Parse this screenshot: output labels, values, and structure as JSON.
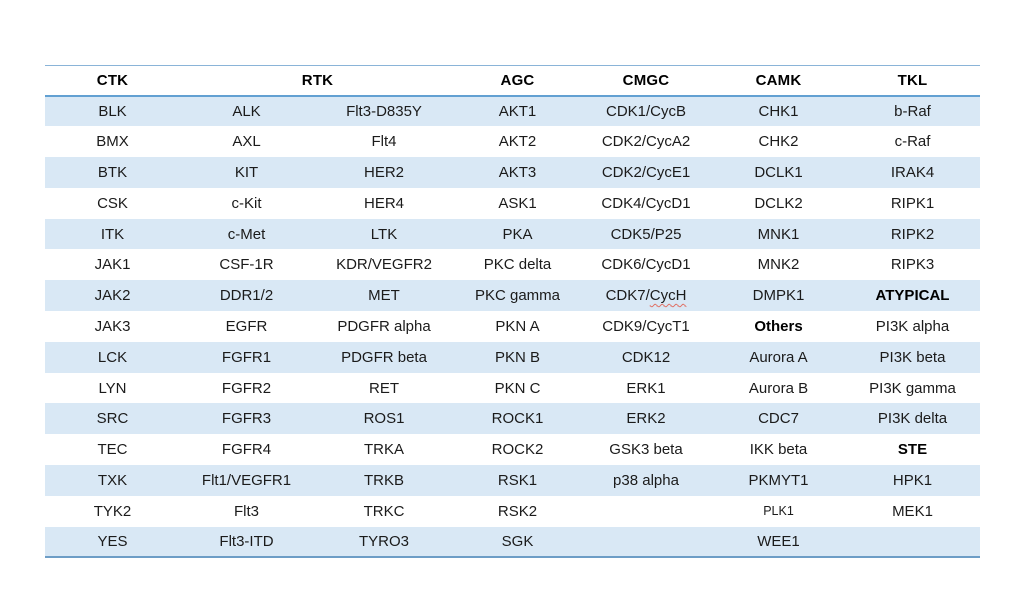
{
  "colors": {
    "band": "#d9e8f5",
    "line-top": "#8ab4d8",
    "line-header": "#62a0d2",
    "line-bottom": "#6d9dc6",
    "text": "#1b1b1b",
    "page-bg": "#ffffff"
  },
  "table": {
    "headers": [
      {
        "label": "CTK",
        "span": 1
      },
      {
        "label": "RTK",
        "span": 2
      },
      {
        "label": "AGC",
        "span": 1
      },
      {
        "label": "CMGC",
        "span": 1
      },
      {
        "label": "CAMK",
        "span": 1
      },
      {
        "label": "TKL",
        "span": 1
      }
    ],
    "rows": [
      [
        "BLK",
        "ALK",
        "Flt3-D835Y",
        "AKT1",
        "CDK1/CycB",
        "CHK1",
        "b-Raf"
      ],
      [
        "BMX",
        "AXL",
        "Flt4",
        "AKT2",
        "CDK2/CycA2",
        "CHK2",
        "c-Raf"
      ],
      [
        "BTK",
        "KIT",
        "HER2",
        "AKT3",
        "CDK2/CycE1",
        "DCLK1",
        "IRAK4"
      ],
      [
        "CSK",
        "c-Kit",
        "HER4",
        "ASK1",
        "CDK4/CycD1",
        "DCLK2",
        "RIPK1"
      ],
      [
        "ITK",
        "c-Met",
        "LTK",
        "PKA",
        "CDK5/P25",
        "MNK1",
        "RIPK2"
      ],
      [
        "JAK1",
        "CSF-1R",
        "KDR/VEGFR2",
        "PKC delta",
        "CDK6/CycD1",
        "MNK2",
        "RIPK3"
      ],
      [
        "JAK2",
        "DDR1/2",
        "MET",
        "PKC gamma",
        {
          "text": "CDK7/CycH",
          "squiggle": "CycH"
        },
        "DMPK1",
        {
          "text": "ATYPICAL",
          "bold": true
        }
      ],
      [
        "JAK3",
        "EGFR",
        "PDGFR alpha",
        "PKN A",
        "CDK9/CycT1",
        {
          "text": "Others",
          "bold": true
        },
        "PI3K alpha"
      ],
      [
        "LCK",
        "FGFR1",
        "PDGFR beta",
        "PKN B",
        "CDK12",
        "Aurora A",
        "PI3K beta"
      ],
      [
        "LYN",
        "FGFR2",
        "RET",
        "PKN C",
        "ERK1",
        "Aurora B",
        "PI3K gamma"
      ],
      [
        "SRC",
        "FGFR3",
        "ROS1",
        "ROCK1",
        "ERK2",
        "CDC7",
        "PI3K delta"
      ],
      [
        "TEC",
        "FGFR4",
        "TRKA",
        "ROCK2",
        "GSK3 beta",
        "IKK beta",
        {
          "text": "STE",
          "bold": true
        }
      ],
      [
        "TXK",
        "Flt1/VEGFR1",
        "TRKB",
        "RSK1",
        "p38 alpha",
        "PKMYT1",
        "HPK1"
      ],
      [
        "TYK2",
        "Flt3",
        "TRKC",
        "RSK2",
        "",
        {
          "text": "PLK1",
          "small": true
        },
        "MEK1"
      ],
      [
        "YES",
        "Flt3-ITD",
        "TYRO3",
        "SGK",
        "",
        "WEE1",
        ""
      ]
    ]
  }
}
